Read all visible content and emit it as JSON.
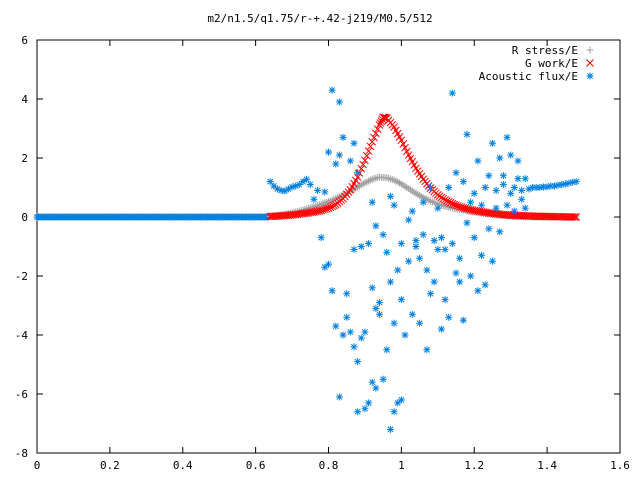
{
  "chart_data": {
    "type": "scatter",
    "title": "m2/n1.5/q1.75/r-+.42-j219/M0.5/512",
    "xlabel": "",
    "ylabel": "",
    "xlim": [
      0,
      1.6
    ],
    "ylim": [
      -8,
      6
    ],
    "x_ticks": [
      "0",
      "0.2",
      "0.4",
      "0.6",
      "0.8",
      "1",
      "1.2",
      "1.4",
      "1.6"
    ],
    "y_ticks": [
      "-8",
      "-6",
      "-4",
      "-2",
      "0",
      "2",
      "4",
      "6"
    ],
    "grid": false,
    "legend_position": "top-right",
    "series": [
      {
        "name": "R stress/E",
        "marker": "plus",
        "color": "#a0a0a0",
        "points": [
          [
            0.64,
            0.02
          ],
          [
            0.66,
            0.05
          ],
          [
            0.68,
            0.09
          ],
          [
            0.7,
            0.14
          ],
          [
            0.72,
            0.2
          ],
          [
            0.74,
            0.27
          ],
          [
            0.76,
            0.35
          ],
          [
            0.78,
            0.43
          ],
          [
            0.8,
            0.52
          ],
          [
            0.82,
            0.62
          ],
          [
            0.84,
            0.74
          ],
          [
            0.86,
            0.88
          ],
          [
            0.88,
            1.02
          ],
          [
            0.9,
            1.16
          ],
          [
            0.92,
            1.28
          ],
          [
            0.94,
            1.35
          ],
          [
            0.96,
            1.33
          ],
          [
            0.98,
            1.25
          ],
          [
            1.0,
            1.12
          ],
          [
            1.02,
            0.96
          ],
          [
            1.04,
            0.8
          ],
          [
            1.06,
            0.66
          ],
          [
            1.08,
            0.54
          ],
          [
            1.1,
            0.44
          ],
          [
            1.12,
            0.36
          ],
          [
            1.14,
            0.3
          ],
          [
            1.16,
            0.25
          ],
          [
            1.18,
            0.21
          ],
          [
            1.2,
            0.17
          ],
          [
            1.22,
            0.13
          ],
          [
            1.24,
            0.1
          ],
          [
            1.26,
            0.07
          ],
          [
            1.28,
            0.05
          ],
          [
            1.3,
            0.03
          ],
          [
            1.32,
            0.02
          ],
          [
            1.34,
            0.01
          ],
          [
            1.36,
            0.0
          ],
          [
            1.38,
            0.0
          ],
          [
            1.4,
            0.0
          ],
          [
            1.42,
            0.0
          ],
          [
            1.44,
            0.0
          ],
          [
            1.46,
            0.0
          ],
          [
            1.48,
            0.0
          ]
        ]
      },
      {
        "name": "G work/E",
        "marker": "cross",
        "color": "#ff0000",
        "points": [
          [
            0.64,
            0.02
          ],
          [
            0.66,
            0.03
          ],
          [
            0.68,
            0.05
          ],
          [
            0.7,
            0.07
          ],
          [
            0.72,
            0.1
          ],
          [
            0.74,
            0.13
          ],
          [
            0.76,
            0.17
          ],
          [
            0.78,
            0.22
          ],
          [
            0.8,
            0.3
          ],
          [
            0.82,
            0.42
          ],
          [
            0.84,
            0.62
          ],
          [
            0.86,
            0.92
          ],
          [
            0.88,
            1.35
          ],
          [
            0.9,
            1.92
          ],
          [
            0.92,
            2.55
          ],
          [
            0.94,
            3.12
          ],
          [
            0.95,
            3.38
          ],
          [
            0.96,
            3.35
          ],
          [
            0.98,
            3.05
          ],
          [
            1.0,
            2.6
          ],
          [
            1.02,
            2.1
          ],
          [
            1.04,
            1.65
          ],
          [
            1.06,
            1.28
          ],
          [
            1.08,
            0.98
          ],
          [
            1.1,
            0.75
          ],
          [
            1.12,
            0.58
          ],
          [
            1.14,
            0.45
          ],
          [
            1.16,
            0.35
          ],
          [
            1.18,
            0.28
          ],
          [
            1.2,
            0.22
          ],
          [
            1.22,
            0.18
          ],
          [
            1.24,
            0.14
          ],
          [
            1.26,
            0.11
          ],
          [
            1.28,
            0.08
          ],
          [
            1.3,
            0.06
          ],
          [
            1.32,
            0.05
          ],
          [
            1.34,
            0.04
          ],
          [
            1.36,
            0.03
          ],
          [
            1.38,
            0.02
          ],
          [
            1.4,
            0.02
          ],
          [
            1.42,
            0.01
          ],
          [
            1.44,
            0.01
          ],
          [
            1.46,
            0.0
          ],
          [
            1.48,
            0.0
          ]
        ]
      },
      {
        "name": "Acoustic flux/E",
        "marker": "star",
        "color": "#0080e0",
        "points": [
          [
            0.64,
            1.2
          ],
          [
            0.65,
            1.05
          ],
          [
            0.66,
            0.95
          ],
          [
            0.67,
            0.9
          ],
          [
            0.68,
            0.88
          ],
          [
            0.69,
            0.95
          ],
          [
            0.7,
            1.02
          ],
          [
            0.71,
            1.05
          ],
          [
            0.72,
            1.1
          ],
          [
            0.73,
            1.2
          ],
          [
            0.74,
            1.28
          ],
          [
            0.75,
            1.1
          ],
          [
            0.76,
            0.6
          ],
          [
            0.77,
            0.9
          ],
          [
            0.78,
            -0.7
          ],
          [
            0.79,
            0.85
          ],
          [
            0.79,
            -1.7
          ],
          [
            0.8,
            2.2
          ],
          [
            0.8,
            -1.6
          ],
          [
            0.81,
            4.3
          ],
          [
            0.81,
            -2.5
          ],
          [
            0.82,
            1.8
          ],
          [
            0.82,
            -3.7
          ],
          [
            0.83,
            2.1
          ],
          [
            0.83,
            3.9
          ],
          [
            0.83,
            -6.1
          ],
          [
            0.84,
            2.7
          ],
          [
            0.84,
            -4.0
          ],
          [
            0.85,
            -2.6
          ],
          [
            0.85,
            -3.4
          ],
          [
            0.86,
            1.9
          ],
          [
            0.86,
            -3.9
          ],
          [
            0.87,
            2.5
          ],
          [
            0.87,
            -4.4
          ],
          [
            0.87,
            -1.1
          ],
          [
            0.88,
            1.5
          ],
          [
            0.88,
            -4.9
          ],
          [
            0.88,
            -6.6
          ],
          [
            0.89,
            -1.0
          ],
          [
            0.89,
            -4.1
          ],
          [
            0.9,
            -3.9
          ],
          [
            0.9,
            -6.5
          ],
          [
            0.91,
            -0.9
          ],
          [
            0.91,
            -6.3
          ],
          [
            0.92,
            0.5
          ],
          [
            0.92,
            -2.4
          ],
          [
            0.92,
            -5.6
          ],
          [
            0.93,
            -0.3
          ],
          [
            0.93,
            -3.1
          ],
          [
            0.93,
            -5.8
          ],
          [
            0.94,
            -2.9
          ],
          [
            0.94,
            -3.3
          ],
          [
            0.95,
            -0.6
          ],
          [
            0.95,
            -5.5
          ],
          [
            0.96,
            -1.2
          ],
          [
            0.96,
            -4.5
          ],
          [
            0.97,
            0.7
          ],
          [
            0.97,
            -2.2
          ],
          [
            0.97,
            -7.2
          ],
          [
            0.98,
            0.4
          ],
          [
            0.98,
            -3.6
          ],
          [
            0.98,
            -6.6
          ],
          [
            0.99,
            -1.8
          ],
          [
            0.99,
            -6.3
          ],
          [
            1.0,
            -0.9
          ],
          [
            1.0,
            -2.8
          ],
          [
            1.0,
            -6.2
          ],
          [
            1.01,
            -4.0
          ],
          [
            1.02,
            -0.1
          ],
          [
            1.02,
            -1.5
          ],
          [
            1.03,
            0.2
          ],
          [
            1.03,
            -3.3
          ],
          [
            1.04,
            -0.8
          ],
          [
            1.04,
            -1.0
          ],
          [
            1.05,
            -1.4
          ],
          [
            1.05,
            -3.6
          ],
          [
            1.06,
            0.5
          ],
          [
            1.06,
            -0.6
          ],
          [
            1.07,
            -1.8
          ],
          [
            1.07,
            -4.5
          ],
          [
            1.08,
            1.0
          ],
          [
            1.08,
            -2.6
          ],
          [
            1.09,
            -0.8
          ],
          [
            1.09,
            -2.2
          ],
          [
            1.1,
            0.3
          ],
          [
            1.1,
            -1.1
          ],
          [
            1.11,
            -0.7
          ],
          [
            1.11,
            -3.8
          ],
          [
            1.12,
            -1.1
          ],
          [
            1.12,
            -2.8
          ],
          [
            1.13,
            1.0
          ],
          [
            1.13,
            -3.4
          ],
          [
            1.14,
            4.2
          ],
          [
            1.14,
            -0.9
          ],
          [
            1.15,
            1.5
          ],
          [
            1.15,
            -1.9
          ],
          [
            1.16,
            -1.4
          ],
          [
            1.16,
            -2.2
          ],
          [
            1.17,
            1.2
          ],
          [
            1.17,
            -3.5
          ],
          [
            1.18,
            2.8
          ],
          [
            1.18,
            -0.2
          ],
          [
            1.19,
            0.5
          ],
          [
            1.19,
            -2.0
          ],
          [
            1.2,
            -0.7
          ],
          [
            1.2,
            0.8
          ],
          [
            1.21,
            1.9
          ],
          [
            1.21,
            -2.5
          ],
          [
            1.22,
            0.4
          ],
          [
            1.22,
            -1.3
          ],
          [
            1.23,
            1.0
          ],
          [
            1.23,
            -2.3
          ],
          [
            1.24,
            1.4
          ],
          [
            1.24,
            -0.4
          ],
          [
            1.25,
            2.5
          ],
          [
            1.25,
            -1.5
          ],
          [
            1.26,
            0.9
          ],
          [
            1.26,
            0.3
          ],
          [
            1.27,
            2.0
          ],
          [
            1.27,
            -0.5
          ],
          [
            1.28,
            1.4
          ],
          [
            1.28,
            1.1
          ],
          [
            1.29,
            2.7
          ],
          [
            1.29,
            0.4
          ],
          [
            1.3,
            2.1
          ],
          [
            1.3,
            0.8
          ],
          [
            1.31,
            1.0
          ],
          [
            1.31,
            0.2
          ],
          [
            1.32,
            1.9
          ],
          [
            1.32,
            1.3
          ],
          [
            1.33,
            0.9
          ],
          [
            1.33,
            0.6
          ],
          [
            1.34,
            1.3
          ],
          [
            1.34,
            0.3
          ],
          [
            1.35,
            0.95
          ],
          [
            1.36,
            1.0
          ],
          [
            1.37,
            1.0
          ],
          [
            1.38,
            1.0
          ],
          [
            1.39,
            1.02
          ],
          [
            1.4,
            1.02
          ],
          [
            1.41,
            1.05
          ],
          [
            1.42,
            1.05
          ],
          [
            1.43,
            1.08
          ],
          [
            1.44,
            1.1
          ],
          [
            1.45,
            1.12
          ],
          [
            1.46,
            1.15
          ],
          [
            1.47,
            1.18
          ],
          [
            1.48,
            1.2
          ]
        ]
      }
    ]
  }
}
